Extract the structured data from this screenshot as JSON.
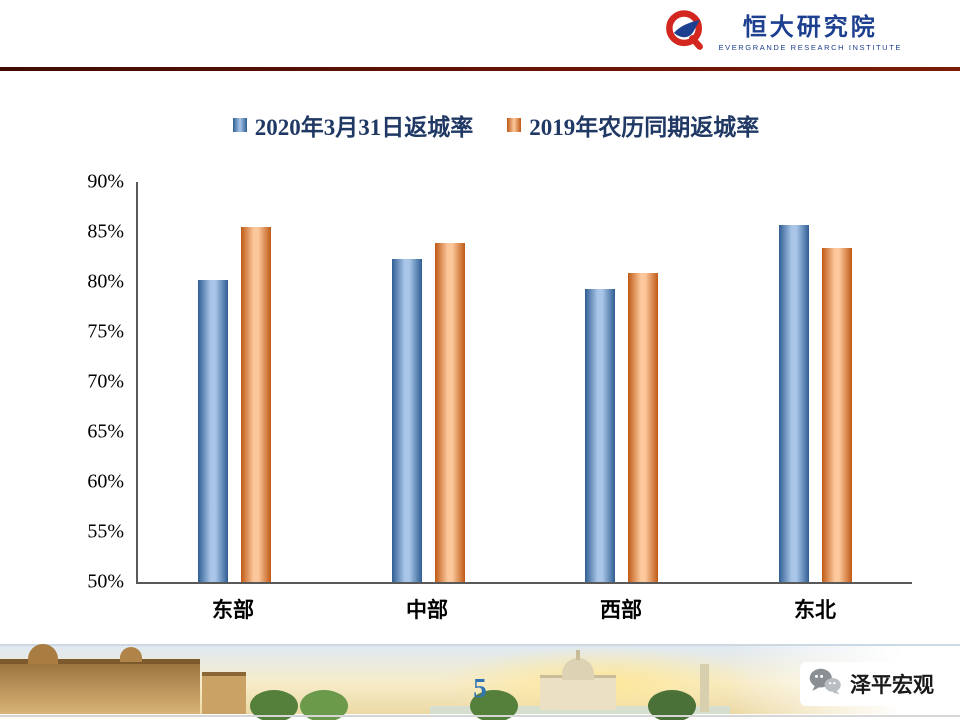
{
  "header": {
    "logo_title": "恒大研究院",
    "logo_subtitle": "EVERGRANDE RESEARCH INSTITUTE"
  },
  "chart_data": {
    "type": "bar",
    "categories": [
      "东部",
      "中部",
      "西部",
      "东北"
    ],
    "series": [
      {
        "name": "2020年3月31日返城率",
        "values": [
          80.2,
          82.3,
          79.3,
          85.7
        ],
        "color": "#4f81bd",
        "color_light": "#a9c6e8",
        "color_dark": "#2f5e94"
      },
      {
        "name": "2019年农历同期返城率",
        "values": [
          85.5,
          83.9,
          80.9,
          83.4
        ],
        "color": "#f79646",
        "color_light": "#fbc79b",
        "color_dark": "#c05a16"
      }
    ],
    "title": "",
    "xlabel": "",
    "ylabel": "",
    "ylim": [
      50,
      90
    ],
    "ytick_step": 5,
    "ytick_suffix": "%",
    "grid": false,
    "legend_position": "top"
  },
  "footer": {
    "page_number": "5",
    "brand": "泽平宏观"
  },
  "colors": {
    "top_rule": "#6b1405",
    "brand_red": "#d2261f",
    "brand_blue": "#1d3f8f",
    "legend_text": "#1f3864",
    "page_number": "#2e74b5",
    "axis": "#595959"
  }
}
